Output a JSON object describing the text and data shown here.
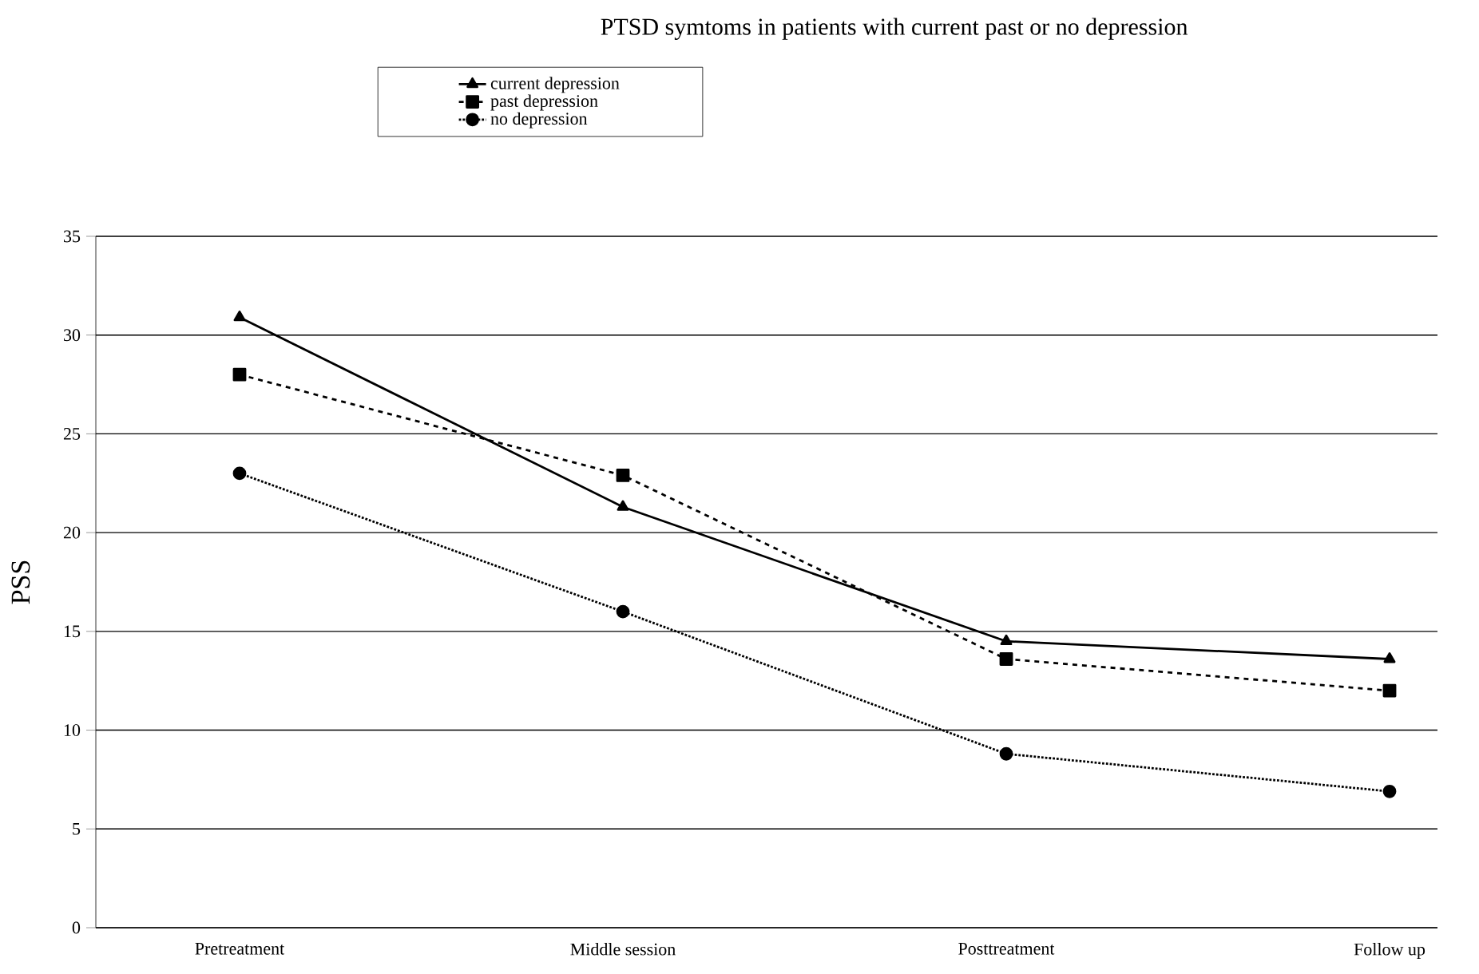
{
  "chart_data": {
    "type": "line",
    "title": "PTSD symtoms in patients with current past or no depression",
    "ylabel": "PSS",
    "categories": [
      "Pretreatment",
      "Middle session",
      "Posttreatment",
      "Follow up"
    ],
    "series": [
      {
        "name": "current depression",
        "color": "#000000",
        "marker": "triangle",
        "line_style": "solid",
        "values": [
          30.9,
          21.3,
          14.5,
          13.6
        ]
      },
      {
        "name": "past depression",
        "color": "#000000",
        "marker": "square",
        "line_style": "dashed",
        "values": [
          28.0,
          22.9,
          13.6,
          12.0
        ]
      },
      {
        "name": "no depression",
        "color": "#000000",
        "marker": "circle",
        "line_style": "dotted",
        "values": [
          23.0,
          16.0,
          8.8,
          6.9
        ]
      }
    ],
    "ylim": [
      0,
      35
    ],
    "yticks": [
      0,
      5,
      10,
      15,
      20,
      25,
      30,
      35
    ],
    "grid": "y",
    "legend": "top"
  }
}
